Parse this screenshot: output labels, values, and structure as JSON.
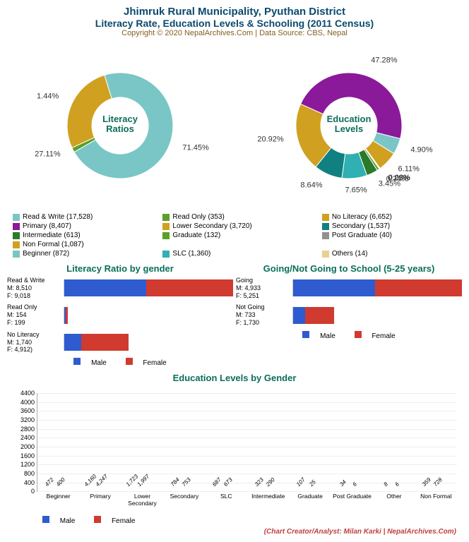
{
  "header": {
    "title": "Jhimruk Rural Municipality, Pyuthan District",
    "subtitle": "Literacy Rate, Education Levels & Schooling (2011 Census)",
    "copyright": "Copyright © 2020 NepalArchives.Com | Data Source: CBS, Nepal"
  },
  "colors": {
    "male": "#2f5bd0",
    "female": "#d03a2f",
    "teal": "#0a6e5a",
    "navy": "#0a4a6e"
  },
  "donut1": {
    "center": "Literacy\nRatios",
    "slices": [
      {
        "label": "Read & Write (17,528)",
        "pct": 71.45,
        "color": "#7ac6c6"
      },
      {
        "label": "Read Only (353)",
        "pct": 1.44,
        "color": "#5aa02a"
      },
      {
        "label": "No Literacy (6,652)",
        "pct": 27.11,
        "color": "#d0a020"
      }
    ],
    "pct_labels": [
      "71.45%",
      "27.11%",
      "1.44%"
    ]
  },
  "donut2": {
    "center": "Education\nLevels",
    "slices": [
      {
        "label": "Primary (8,407)",
        "pct": 47.28,
        "color": "#8a1a9a"
      },
      {
        "label": "Beginner (872)",
        "pct": 4.9,
        "color": "#7ac6c6"
      },
      {
        "label": "Non Formal (1,087)",
        "pct": 6.11,
        "color": "#d0a020"
      },
      {
        "label": "Others (14)",
        "pct": 0.08,
        "color": "#e8d090"
      },
      {
        "label": "Post Graduate (40)",
        "pct": 0.22,
        "color": "#909090"
      },
      {
        "label": "Graduate (132)",
        "pct": 0.74,
        "color": "#5aa02a"
      },
      {
        "label": "Intermediate (613)",
        "pct": 3.45,
        "color": "#2a7a2a"
      },
      {
        "label": "SLC (1,360)",
        "pct": 7.65,
        "color": "#30b0b0"
      },
      {
        "label": "Secondary (1,537)",
        "pct": 8.64,
        "color": "#108080"
      },
      {
        "label": "Lower Secondary (3,720)",
        "pct": 20.92,
        "color": "#d0a020"
      }
    ],
    "pct_labels": [
      "47.28%",
      "4.90%",
      "6.11%",
      "0.08%",
      "0.22%",
      "0.74%",
      "3.45%",
      "7.65%",
      "8.64%",
      "20.92%"
    ],
    "legend_order": [
      {
        "label": "Read & Write (17,528)",
        "color": "#7ac6c6"
      },
      {
        "label": "Read Only (353)",
        "color": "#5aa02a"
      },
      {
        "label": "No Literacy (6,652)",
        "color": "#d0a020"
      },
      {
        "label": "Primary (8,407)",
        "color": "#8a1a9a"
      },
      {
        "label": "Lower Secondary (3,720)",
        "color": "#d0a020"
      },
      {
        "label": "Secondary (1,537)",
        "color": "#108080"
      },
      {
        "label": "Intermediate (613)",
        "color": "#2a7a2a"
      },
      {
        "label": "Graduate (132)",
        "color": "#5aa02a"
      },
      {
        "label": "Post Graduate (40)",
        "color": "#909090"
      },
      {
        "label": "Non Formal (1,087)",
        "color": "#d0a020"
      },
      {
        "label": "",
        "color": ""
      },
      {
        "label": "",
        "color": ""
      },
      {
        "label": "Beginner (872)",
        "color": "#7ac6c6"
      },
      {
        "label": "SLC (1,360)",
        "color": "#30b0b0"
      },
      {
        "label": "Others (14)",
        "color": "#e8d090"
      }
    ]
  },
  "hbar1": {
    "title": "Literacy Ratio by gender",
    "max": 17528,
    "rows": [
      {
        "label": "Read & Write\nM: 8,510\nF: 9,018",
        "m": 8510,
        "f": 9018
      },
      {
        "label": "Read Only\nM: 154\nF: 199",
        "m": 154,
        "f": 199
      },
      {
        "label": "No Literacy\nM: 1,740\nF: 4,912)",
        "m": 1740,
        "f": 4912
      }
    ]
  },
  "hbar2": {
    "title": "Going/Not Going to School (5-25 years)",
    "max": 10184,
    "rows": [
      {
        "label": "Going\nM: 4,933\nF: 5,251",
        "m": 4933,
        "f": 5251
      },
      {
        "label": "Not Going\nM: 733\nF: 1,730",
        "m": 733,
        "f": 1730
      }
    ]
  },
  "legend_mf": {
    "male": "Male",
    "female": "Female"
  },
  "vbar": {
    "title": "Education Levels by Gender",
    "ymax": 4400,
    "ystep": 400,
    "categories": [
      "Beginner",
      "Primary",
      "Lower Secondary",
      "Secondary",
      "SLC",
      "Intermediate",
      "Graduate",
      "Post Graduate",
      "Other",
      "Non Formal"
    ],
    "male": [
      472,
      4160,
      1723,
      784,
      687,
      323,
      107,
      34,
      8,
      359
    ],
    "female": [
      400,
      4247,
      1997,
      753,
      673,
      290,
      25,
      6,
      6,
      728
    ]
  },
  "credit": "(Chart Creator/Analyst: Milan Karki | NepalArchives.Com)"
}
